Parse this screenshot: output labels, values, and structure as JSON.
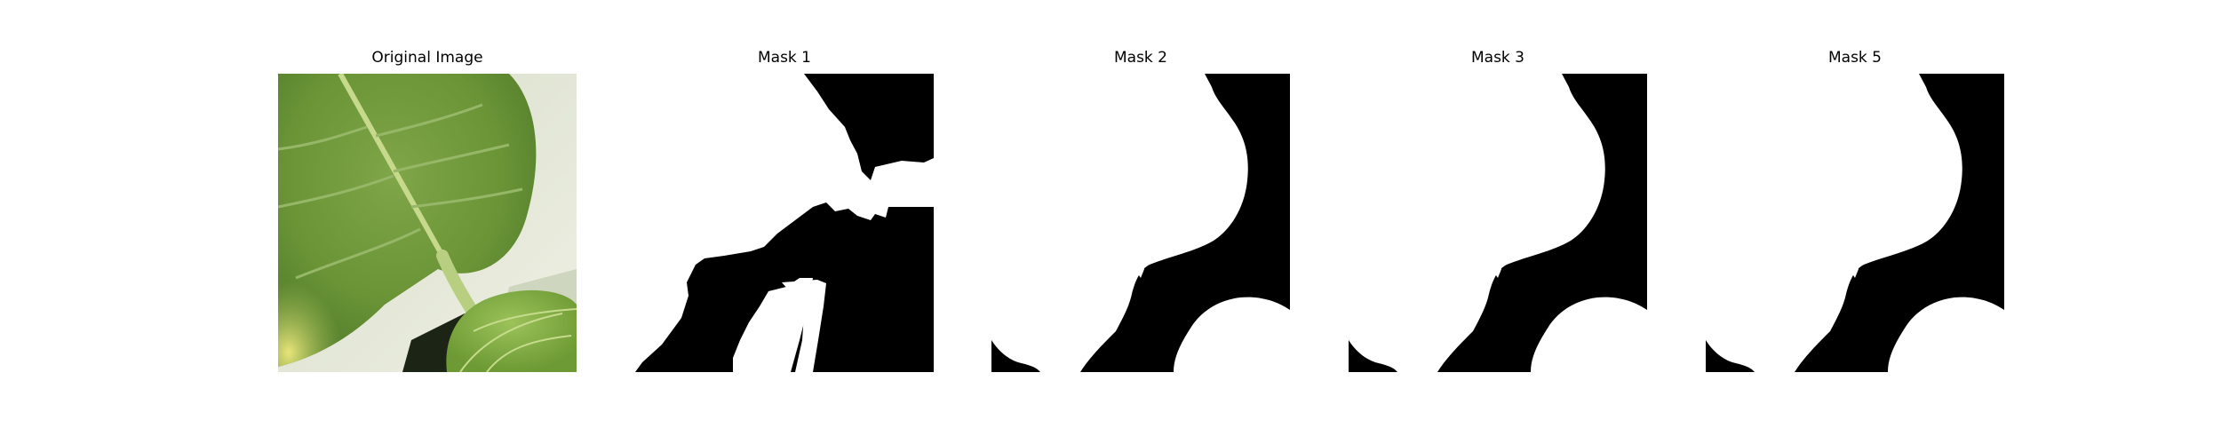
{
  "figure": {
    "panels": [
      {
        "title": "Original Image",
        "kind": "photo",
        "subject": "leaf-photo"
      },
      {
        "title": "Mask 1",
        "kind": "mask",
        "subject": "binary-mask"
      },
      {
        "title": "Mask 2",
        "kind": "mask",
        "subject": "binary-mask"
      },
      {
        "title": "Mask 3",
        "kind": "mask",
        "subject": "binary-mask"
      },
      {
        "title": "Mask 5",
        "kind": "mask",
        "subject": "binary-mask"
      }
    ],
    "colors": {
      "mask_background": "#000000",
      "mask_foreground": "#ffffff",
      "leaf_dark": "#6f9a3a",
      "leaf_light": "#c9d86a",
      "wall": "#e3e6d6"
    }
  }
}
